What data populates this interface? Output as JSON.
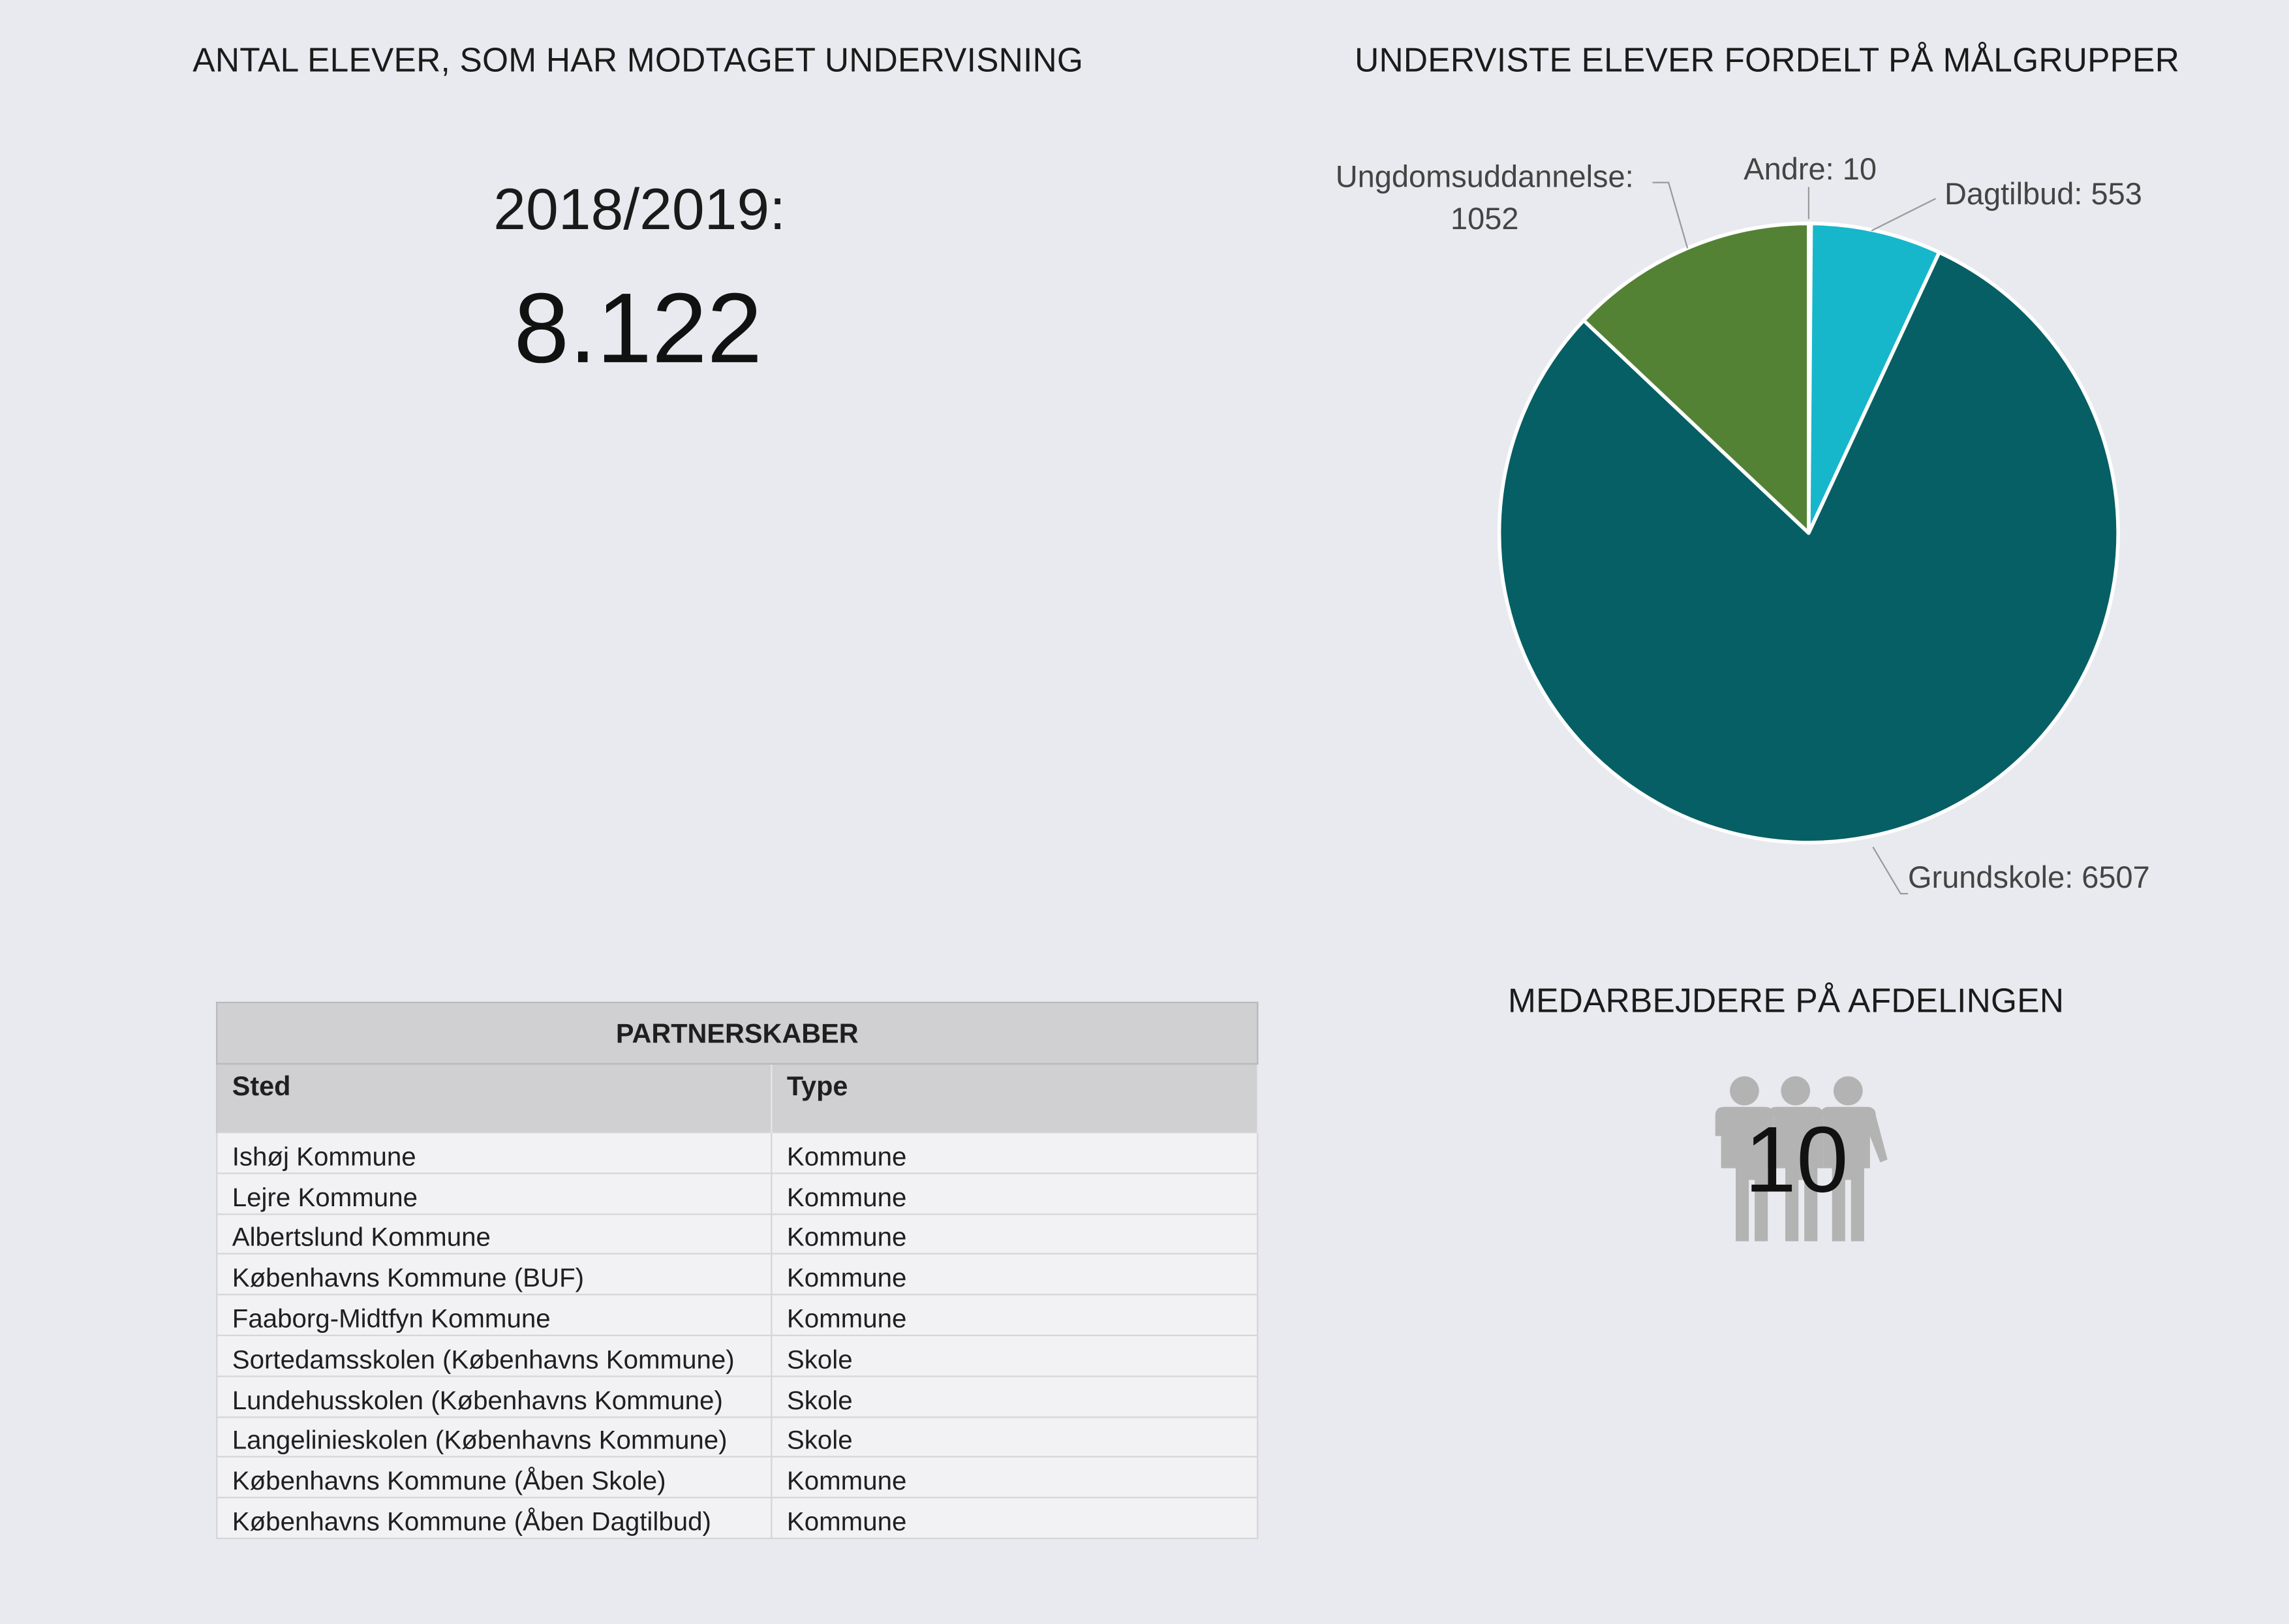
{
  "left_panel": {
    "title": "ANTAL ELEVER, SOM HAR MODTAGET UNDERVISNING",
    "year_label": "2018/2019:",
    "total_students": "8.122"
  },
  "chart_data": {
    "type": "pie",
    "title": "UNDERVISTE ELEVER FORDELT PÅ MÅLGRUPPER",
    "slices": [
      {
        "label": "Andre",
        "value": 10,
        "color": "#5a7fa8",
        "text": "Andre: 10"
      },
      {
        "label": "Dagtilbud",
        "value": 553,
        "color": "#16b7cb",
        "text": "Dagtilbud: 553"
      },
      {
        "label": "Grundskole",
        "value": 6507,
        "color": "#065f64",
        "text": "Grundskole: 6507"
      },
      {
        "label": "Ungdomsuddannelse",
        "value": 1052,
        "color": "#538234",
        "text_lines": [
          "Ungdomsuddannelse:",
          "1052"
        ]
      }
    ],
    "slice_border_color": "#ffffff",
    "leader_line_color": "#9a9a9a",
    "label_color": "#444444"
  },
  "partners": {
    "caption": "PARTNERSKABER",
    "columns": [
      "Sted",
      "Type"
    ],
    "header_color": "#d0cfd1",
    "rows": [
      [
        "Ishøj Kommune",
        "Kommune"
      ],
      [
        "Lejre Kommune",
        "Kommune"
      ],
      [
        "Albertslund Kommune",
        "Kommune"
      ],
      [
        "Københavns Kommune (BUF)",
        "Kommune"
      ],
      [
        "Faaborg-Midtfyn Kommune",
        "Kommune"
      ],
      [
        "Sortedamsskolen (Københavns Kommune)",
        "Skole"
      ],
      [
        "Lundehusskolen (Københavns Kommune)",
        "Skole"
      ],
      [
        "Langelinieskolen (Københavns Kommune)",
        "Skole"
      ],
      [
        "Københavns Kommune (Åben Skole)",
        "Kommune"
      ],
      [
        "Københavns Kommune (Åben Dagtilbud)",
        "Kommune"
      ]
    ]
  },
  "staff": {
    "title": "MEDARBEJDERE PÅ AFDELINGEN",
    "count": "10",
    "icon": "people-group-icon",
    "icon_color": "#b3b3b3"
  }
}
